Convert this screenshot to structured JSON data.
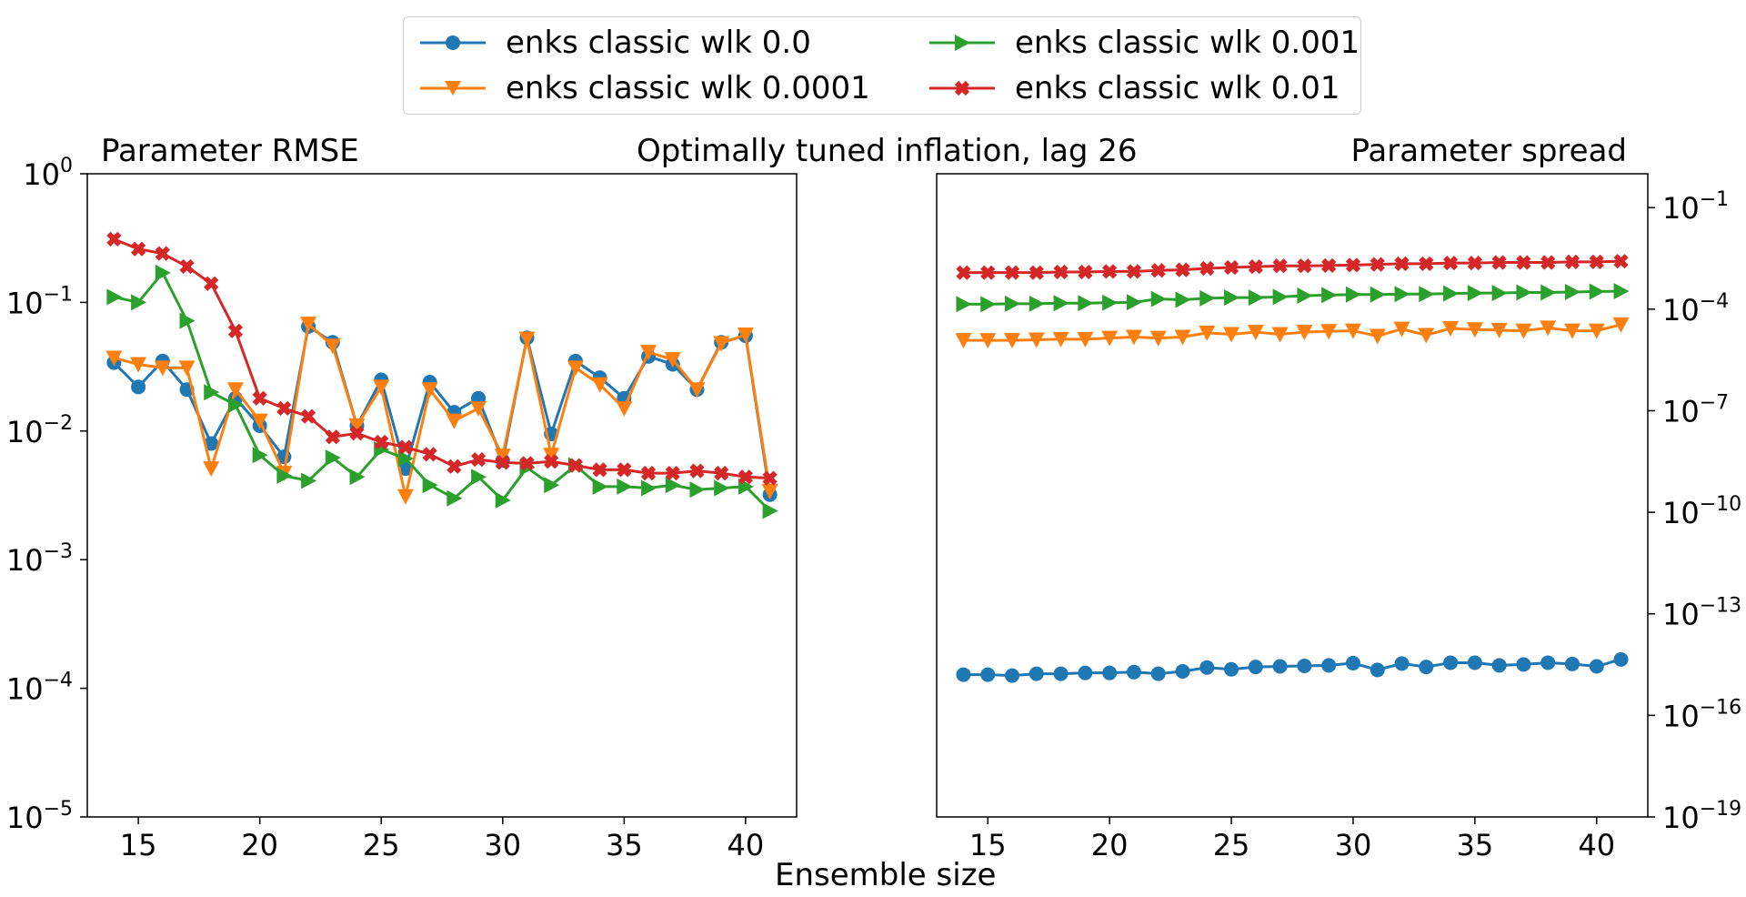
{
  "figure": {
    "center_title": "Optimally tuned inflation, lag 26",
    "xlabel": "Ensemble size"
  },
  "colors": {
    "blue": "#1f77b4",
    "orange": "#ff7f0e",
    "green": "#2ca02c",
    "red": "#d62728"
  },
  "legend": {
    "placement": "top-center",
    "items": [
      {
        "label": "enks classic wlk 0.0",
        "color": "#1f77b4",
        "marker": "circle"
      },
      {
        "label": "enks classic wlk 0.0001",
        "color": "#ff7f0e",
        "marker": "triangle-down"
      },
      {
        "label": "enks classic wlk 0.001",
        "color": "#2ca02c",
        "marker": "triangle-right"
      },
      {
        "label": "enks classic wlk 0.01",
        "color": "#d62728",
        "marker": "x-filled"
      }
    ]
  },
  "chart_data": [
    {
      "type": "line",
      "title": "Parameter RMSE",
      "xlabel": "",
      "ylabel": "",
      "yscale": "log",
      "xlim": [
        12.9,
        42.1
      ],
      "ylim": [
        1e-05,
        1
      ],
      "xticks": [
        15,
        20,
        25,
        30,
        35,
        40
      ],
      "yticks": [
        {
          "exp": 0,
          "label_base": "10",
          "label_exp": "0"
        },
        {
          "exp": -1,
          "label_base": "10",
          "label_exp": "−1"
        },
        {
          "exp": -2,
          "label_base": "10",
          "label_exp": "−2"
        },
        {
          "exp": -3,
          "label_base": "10",
          "label_exp": "−3"
        },
        {
          "exp": -4,
          "label_base": "10",
          "label_exp": "−4"
        },
        {
          "exp": -5,
          "label_base": "10",
          "label_exp": "−5"
        }
      ],
      "yaxis_side": "left",
      "grid": false,
      "x": [
        14,
        15,
        16,
        17,
        18,
        19,
        20,
        21,
        22,
        23,
        24,
        25,
        26,
        27,
        28,
        29,
        30,
        31,
        32,
        33,
        34,
        35,
        36,
        37,
        38,
        39,
        40,
        41
      ],
      "series": [
        {
          "name": "enks classic wlk 0.0",
          "color": "#1f77b4",
          "marker": "circle",
          "values": [
            0.034,
            0.022,
            0.035,
            0.021,
            0.008,
            0.018,
            0.011,
            0.0063,
            0.065,
            0.049,
            0.011,
            0.025,
            0.0051,
            0.024,
            0.014,
            0.018,
            0.0059,
            0.053,
            0.0095,
            0.035,
            0.026,
            0.018,
            0.038,
            0.033,
            0.021,
            0.049,
            0.055,
            0.0032
          ]
        },
        {
          "name": "enks classic wlk 0.0001",
          "color": "#ff7f0e",
          "marker": "triangle-down",
          "values": [
            0.037,
            0.033,
            0.031,
            0.031,
            0.0051,
            0.021,
            0.012,
            0.0047,
            0.068,
            0.046,
            0.011,
            0.022,
            0.0031,
            0.021,
            0.012,
            0.015,
            0.0064,
            0.052,
            0.0065,
            0.031,
            0.023,
            0.015,
            0.041,
            0.036,
            0.021,
            0.048,
            0.056,
            0.0034
          ]
        },
        {
          "name": "enks classic wlk 0.001",
          "color": "#2ca02c",
          "marker": "triangle-right",
          "values": [
            0.11,
            0.1,
            0.17,
            0.072,
            0.02,
            0.016,
            0.0065,
            0.0045,
            0.0041,
            0.0062,
            0.0044,
            0.0072,
            0.0061,
            0.0038,
            0.003,
            0.0044,
            0.0029,
            0.0052,
            0.0038,
            0.0054,
            0.0037,
            0.0037,
            0.0036,
            0.0038,
            0.0035,
            0.0036,
            0.0037,
            0.0024
          ]
        },
        {
          "name": "enks classic wlk 0.01",
          "color": "#d62728",
          "marker": "x-filled",
          "values": [
            0.31,
            0.26,
            0.24,
            0.19,
            0.14,
            0.06,
            0.018,
            0.015,
            0.013,
            0.009,
            0.0096,
            0.0082,
            0.0075,
            0.0066,
            0.0053,
            0.006,
            0.0057,
            0.0056,
            0.0058,
            0.0054,
            0.005,
            0.005,
            0.0047,
            0.0047,
            0.0049,
            0.0047,
            0.0044,
            0.0043
          ]
        }
      ]
    },
    {
      "type": "line",
      "title": "Parameter spread",
      "xlabel": "",
      "ylabel": "",
      "yscale": "log",
      "xlim": [
        12.9,
        42.1
      ],
      "ylim": [
        1e-19,
        1
      ],
      "xticks": [
        15,
        20,
        25,
        30,
        35,
        40
      ],
      "yticks": [
        {
          "exp": -1,
          "label_base": "10",
          "label_exp": "−1"
        },
        {
          "exp": -4,
          "label_base": "10",
          "label_exp": "−4"
        },
        {
          "exp": -7,
          "label_base": "10",
          "label_exp": "−7"
        },
        {
          "exp": -10,
          "label_base": "10",
          "label_exp": "−10"
        },
        {
          "exp": -13,
          "label_base": "10",
          "label_exp": "−13"
        },
        {
          "exp": -16,
          "label_base": "10",
          "label_exp": "−16"
        },
        {
          "exp": -19,
          "label_base": "10",
          "label_exp": "−19"
        }
      ],
      "yaxis_side": "right",
      "grid": false,
      "x": [
        14,
        15,
        16,
        17,
        18,
        19,
        20,
        21,
        22,
        23,
        24,
        25,
        26,
        27,
        28,
        29,
        30,
        31,
        32,
        33,
        34,
        35,
        36,
        37,
        38,
        39,
        40,
        41
      ],
      "series": [
        {
          "name": "enks classic wlk 0.0",
          "color": "#1f77b4",
          "marker": "circle",
          "values": [
            1.6e-15,
            1.6e-15,
            1.5e-15,
            1.7e-15,
            1.7e-15,
            1.8e-15,
            1.8e-15,
            1.9e-15,
            1.7e-15,
            2e-15,
            2.6e-15,
            2.3e-15,
            2.7e-15,
            2.8e-15,
            2.9e-15,
            3e-15,
            3.5e-15,
            2.2e-15,
            3.4e-15,
            2.7e-15,
            3.6e-15,
            3.6e-15,
            3e-15,
            3.2e-15,
            3.6e-15,
            3.3e-15,
            2.8e-15,
            4.5e-15
          ]
        },
        {
          "name": "enks classic wlk 0.0001",
          "color": "#ff7f0e",
          "marker": "triangle-down",
          "values": [
            1.2e-05,
            1.2e-05,
            1.2e-05,
            1.25e-05,
            1.3e-05,
            1.3e-05,
            1.4e-05,
            1.5e-05,
            1.4e-05,
            1.5e-05,
            2e-05,
            1.8e-05,
            2.1e-05,
            1.8e-05,
            2.1e-05,
            2.2e-05,
            2.3e-05,
            1.6e-05,
            2.6e-05,
            1.7e-05,
            2.7e-05,
            2.5e-05,
            2.4e-05,
            2.3e-05,
            2.8e-05,
            2.3e-05,
            2.3e-05,
            3.5e-05
          ]
        },
        {
          "name": "enks classic wlk 0.001",
          "color": "#2ca02c",
          "marker": "triangle-right",
          "values": [
            0.00014,
            0.00014,
            0.000145,
            0.000145,
            0.00015,
            0.00015,
            0.000155,
            0.00016,
            0.0002,
            0.00019,
            0.00021,
            0.00022,
            0.00022,
            0.00023,
            0.00025,
            0.00026,
            0.00027,
            0.00027,
            0.00028,
            0.00028,
            0.00029,
            0.0003,
            0.0003,
            0.00031,
            0.00031,
            0.00032,
            0.00033,
            0.00034
          ]
        },
        {
          "name": "enks classic wlk 0.01",
          "color": "#d62728",
          "marker": "x-filled",
          "values": [
            0.0012,
            0.0012,
            0.0012,
            0.0012,
            0.00125,
            0.00125,
            0.0013,
            0.0013,
            0.0014,
            0.00145,
            0.0016,
            0.0017,
            0.0018,
            0.0019,
            0.0019,
            0.00195,
            0.002,
            0.0021,
            0.0022,
            0.0022,
            0.0023,
            0.0023,
            0.0024,
            0.0024,
            0.0024,
            0.0025,
            0.0025,
            0.0026
          ]
        }
      ]
    }
  ]
}
